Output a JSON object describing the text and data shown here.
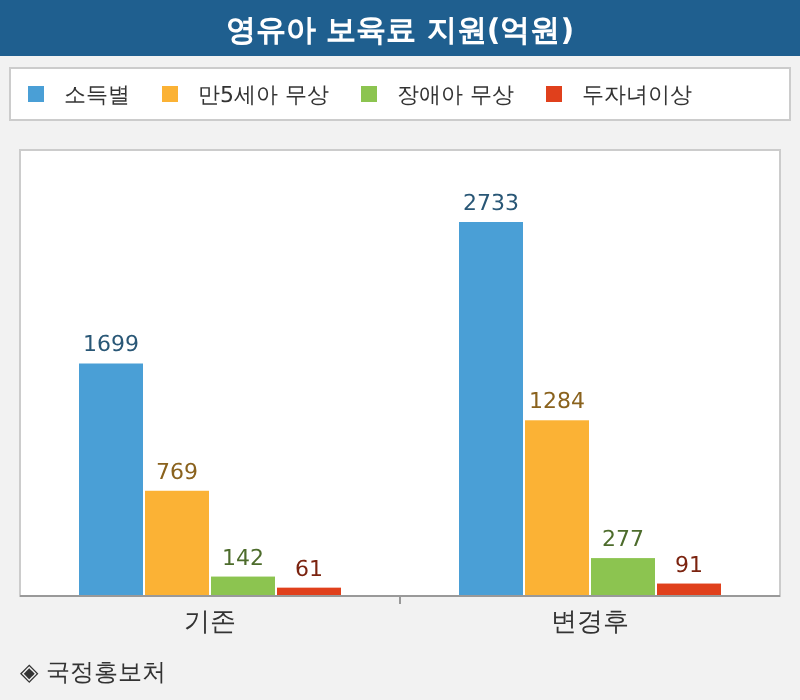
{
  "chart_data": {
    "type": "bar",
    "title": "영유아 보육료 지원(억원)",
    "categories": [
      "기존",
      "변경후"
    ],
    "series": [
      {
        "name": "소득별",
        "color": "#4a9fd6",
        "values": [
          1699,
          2733
        ]
      },
      {
        "name": "만5세아 무상",
        "color": "#fbb235",
        "values": [
          769,
          1284
        ]
      },
      {
        "name": "장애아 무상",
        "color": "#8cc450",
        "values": [
          142,
          277
        ]
      },
      {
        "name": "두자녀이상",
        "color": "#e0401c",
        "values": [
          61,
          91
        ]
      }
    ],
    "data_labels": true,
    "legend": "top",
    "grid": false,
    "annotations": [
      "◈ 국정홍보처"
    ]
  }
}
